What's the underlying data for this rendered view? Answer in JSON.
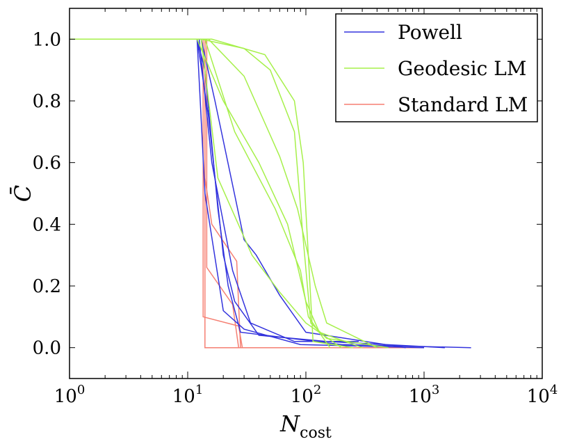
{
  "chart_data": {
    "type": "line",
    "x_scale": "log",
    "xlim": [
      1,
      10000
    ],
    "ylim": [
      -0.1,
      1.1
    ],
    "xlabel": {
      "main": "N",
      "subscript": "cost"
    },
    "ylabel": "C̄",
    "x_ticks": [
      {
        "value": 1,
        "base": "10",
        "exp": "0"
      },
      {
        "value": 10,
        "base": "10",
        "exp": "1"
      },
      {
        "value": 100,
        "base": "10",
        "exp": "2"
      },
      {
        "value": 1000,
        "base": "10",
        "exp": "3"
      },
      {
        "value": 10000,
        "base": "10",
        "exp": "4"
      }
    ],
    "y_ticks": [
      {
        "value": 0.0,
        "label": "0.0"
      },
      {
        "value": 0.2,
        "label": "0.2"
      },
      {
        "value": 0.4,
        "label": "0.4"
      },
      {
        "value": 0.6,
        "label": "0.6"
      },
      {
        "value": 0.8,
        "label": "0.8"
      },
      {
        "value": 1.0,
        "label": "1.0"
      }
    ],
    "legend": {
      "position": "top-right",
      "entries": [
        {
          "name": "Powell",
          "color": "#3333dd"
        },
        {
          "name": "Geodesic LM",
          "color": "#a6f04a"
        },
        {
          "name": "Standard LM",
          "color": "#f57f72"
        }
      ]
    },
    "series": [
      {
        "name": "Standard LM",
        "color": "#f57f72",
        "points": [
          [
            1,
            1.0
          ],
          [
            14,
            1.0
          ],
          [
            14,
            0.55
          ],
          [
            16,
            0.4
          ],
          [
            26,
            0.28
          ],
          [
            28,
            0.0
          ],
          [
            1000,
            0.0
          ]
        ]
      },
      {
        "name": "Standard LM",
        "color": "#f57f72",
        "points": [
          [
            1,
            1.0
          ],
          [
            14.5,
            1.0
          ],
          [
            14.5,
            0.26
          ],
          [
            24,
            0.14
          ],
          [
            27,
            0.0
          ],
          [
            600,
            0.0
          ]
        ]
      },
      {
        "name": "Standard LM",
        "color": "#f57f72",
        "points": [
          [
            1,
            1.0
          ],
          [
            13.5,
            1.0
          ],
          [
            13.5,
            0.1
          ],
          [
            27,
            0.07
          ],
          [
            29,
            0.0
          ],
          [
            400,
            0.0
          ]
        ]
      },
      {
        "name": "Standard LM",
        "color": "#f57f72",
        "points": [
          [
            1,
            1.0
          ],
          [
            14,
            1.0
          ],
          [
            14,
            0.0
          ],
          [
            300,
            0.0
          ]
        ]
      },
      {
        "name": "Powell",
        "color": "#3333dd",
        "points": [
          [
            1,
            1.0
          ],
          [
            12,
            1.0
          ],
          [
            14,
            0.9
          ],
          [
            18,
            0.45
          ],
          [
            22,
            0.2
          ],
          [
            28,
            0.05
          ],
          [
            200,
            0.01
          ],
          [
            2500,
            0.0
          ]
        ]
      },
      {
        "name": "Powell",
        "color": "#3333dd",
        "points": [
          [
            1,
            1.0
          ],
          [
            12,
            1.0
          ],
          [
            15,
            0.75
          ],
          [
            20,
            0.3
          ],
          [
            25,
            0.15
          ],
          [
            40,
            0.04
          ],
          [
            150,
            0.02
          ],
          [
            1500,
            0.0
          ]
        ]
      },
      {
        "name": "Powell",
        "color": "#3333dd",
        "points": [
          [
            1,
            1.0
          ],
          [
            12.5,
            1.0
          ],
          [
            16,
            0.6
          ],
          [
            24,
            0.25
          ],
          [
            34,
            0.08
          ],
          [
            80,
            0.02
          ],
          [
            280,
            0.02
          ]
        ]
      },
      {
        "name": "Powell",
        "color": "#3333dd",
        "points": [
          [
            1,
            1.0
          ],
          [
            13,
            1.0
          ],
          [
            17,
            0.8
          ],
          [
            30,
            0.35
          ],
          [
            38,
            0.3
          ],
          [
            60,
            0.17
          ],
          [
            100,
            0.05
          ],
          [
            700,
            0.0
          ]
        ]
      },
      {
        "name": "Powell",
        "color": "#3333dd",
        "points": [
          [
            1,
            1.0
          ],
          [
            12,
            1.0
          ],
          [
            14,
            0.5
          ],
          [
            20,
            0.12
          ],
          [
            30,
            0.06
          ],
          [
            90,
            0.01
          ],
          [
            1000,
            0.0
          ]
        ]
      },
      {
        "name": "Geodesic LM",
        "color": "#a6f04a",
        "points": [
          [
            1,
            1.0
          ],
          [
            13,
            1.0
          ],
          [
            30,
            0.97
          ],
          [
            50,
            0.9
          ],
          [
            80,
            0.7
          ],
          [
            95,
            0.35
          ],
          [
            110,
            0.08
          ],
          [
            150,
            0.03
          ],
          [
            500,
            0.0
          ]
        ]
      },
      {
        "name": "Geodesic LM",
        "color": "#a6f04a",
        "points": [
          [
            1,
            1.0
          ],
          [
            12,
            1.0
          ],
          [
            20,
            0.8
          ],
          [
            40,
            0.6
          ],
          [
            70,
            0.4
          ],
          [
            100,
            0.15
          ],
          [
            130,
            0.05
          ],
          [
            300,
            0.0
          ]
        ]
      },
      {
        "name": "Geodesic LM",
        "color": "#a6f04a",
        "points": [
          [
            1,
            1.0
          ],
          [
            14,
            1.0
          ],
          [
            25,
            0.7
          ],
          [
            55,
            0.45
          ],
          [
            90,
            0.25
          ],
          [
            105,
            0.1
          ],
          [
            160,
            0.0
          ]
        ]
      },
      {
        "name": "Geodesic LM",
        "color": "#a6f04a",
        "points": [
          [
            1,
            1.0
          ],
          [
            15,
            1.0
          ],
          [
            30,
            0.88
          ],
          [
            60,
            0.62
          ],
          [
            85,
            0.45
          ],
          [
            120,
            0.2
          ],
          [
            150,
            0.08
          ],
          [
            400,
            0.0
          ]
        ]
      },
      {
        "name": "Geodesic LM",
        "color": "#a6f04a",
        "points": [
          [
            1,
            1.0
          ],
          [
            13,
            1.0
          ],
          [
            18,
            0.55
          ],
          [
            35,
            0.3
          ],
          [
            60,
            0.18
          ],
          [
            100,
            0.08
          ],
          [
            200,
            0.0
          ]
        ]
      },
      {
        "name": "Geodesic LM",
        "color": "#a6f04a",
        "points": [
          [
            1,
            1.0
          ],
          [
            16,
            1.0
          ],
          [
            45,
            0.95
          ],
          [
            80,
            0.8
          ],
          [
            95,
            0.6
          ],
          [
            115,
            0.02
          ],
          [
            250,
            0.0
          ]
        ]
      }
    ]
  }
}
